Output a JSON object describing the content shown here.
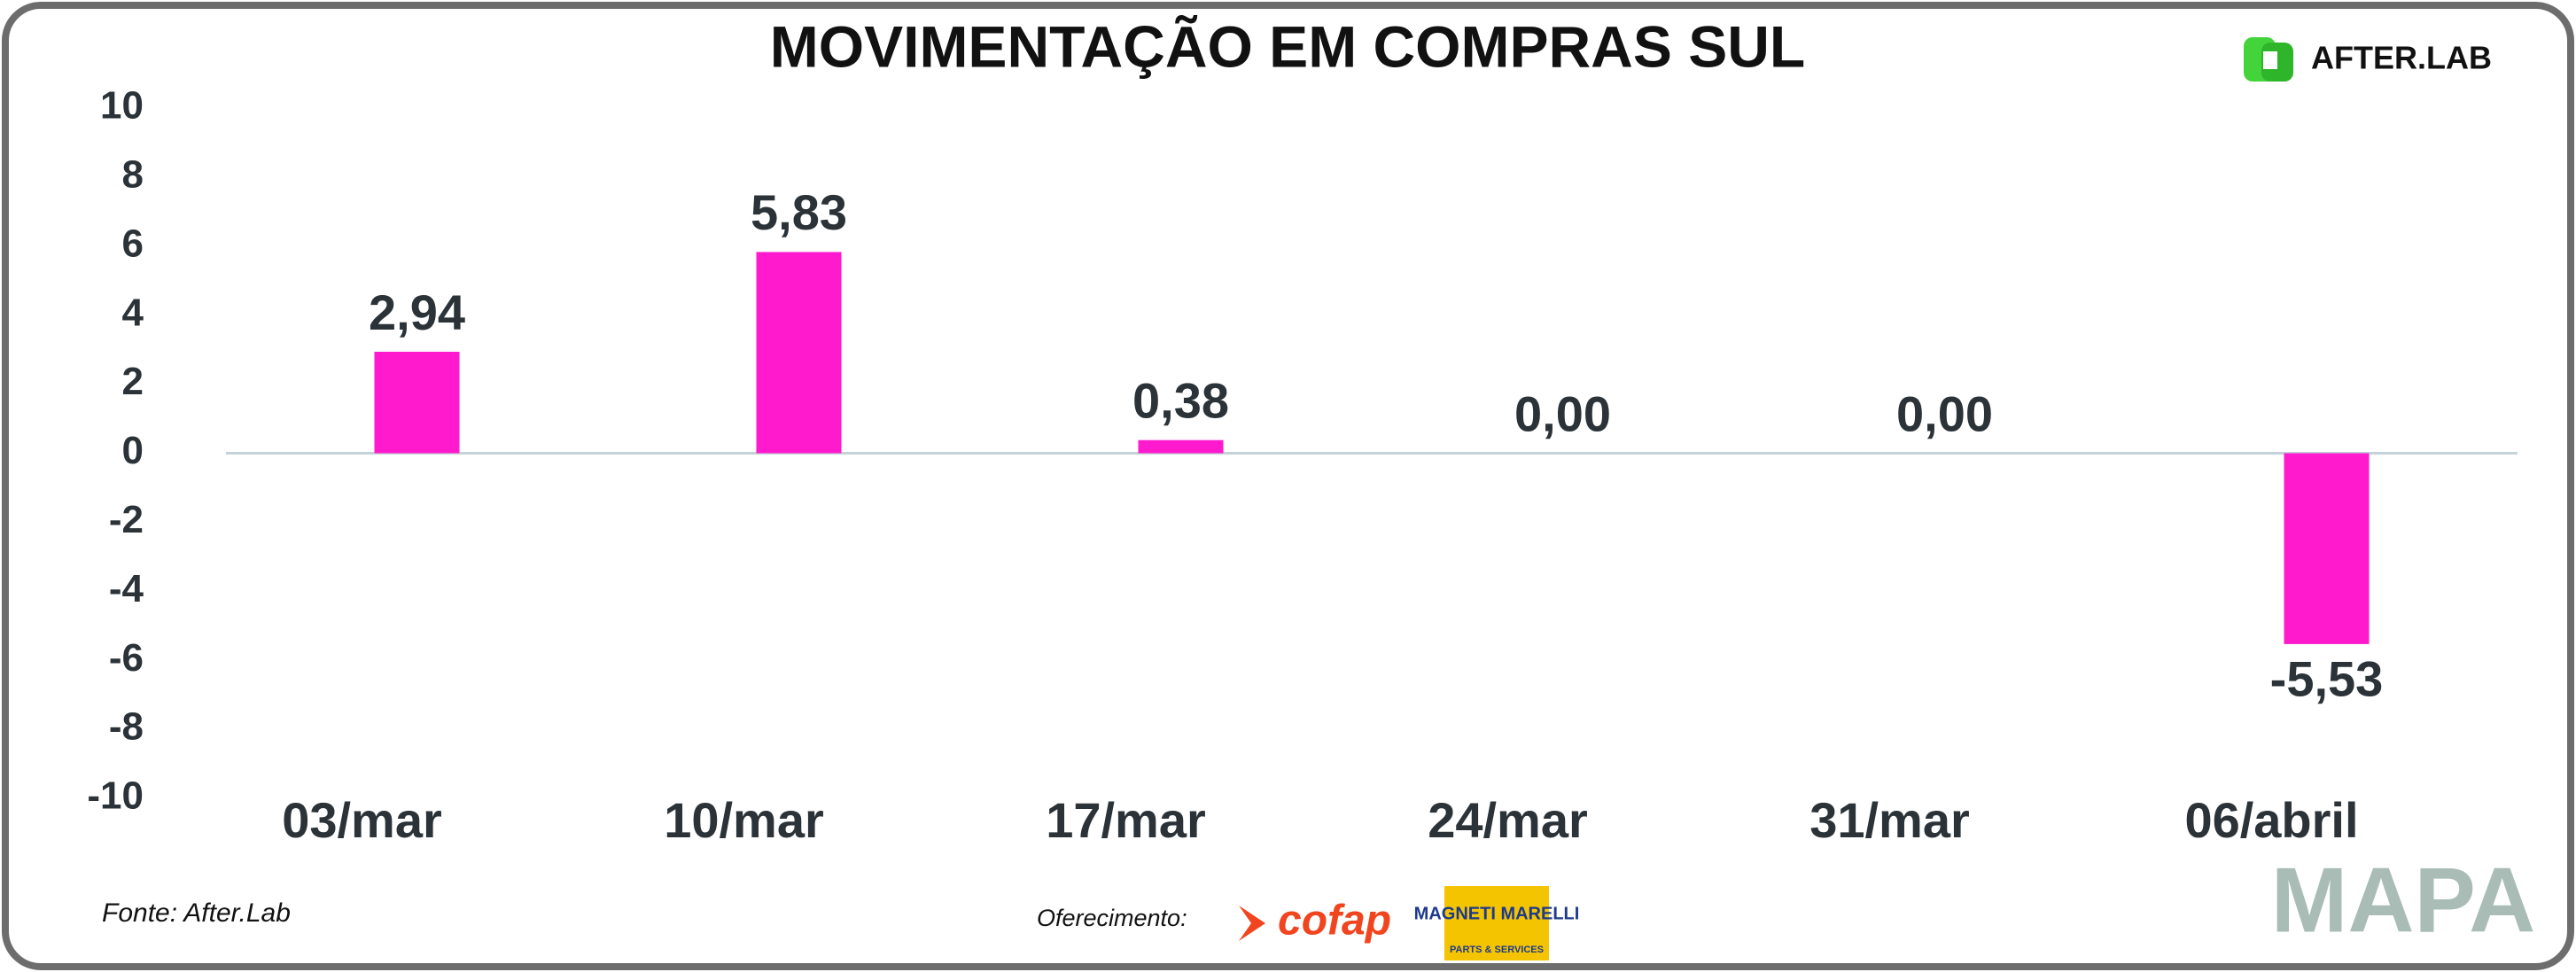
{
  "chart_data": {
    "type": "bar",
    "title": "MOVIMENTAÇÃO EM COMPRAS SUL",
    "categories": [
      "03/mar",
      "10/mar",
      "17/mar",
      "24/mar",
      "31/mar",
      "06/abril"
    ],
    "values": [
      2.94,
      5.83,
      0.38,
      0,
      0,
      -5.53
    ],
    "value_labels": [
      "2,94",
      "5,83",
      "0,38",
      "0,00",
      "0,00",
      "-5,53"
    ],
    "color": "#ff1acd",
    "ylim": [
      -10,
      10
    ],
    "yticks": [
      10,
      8,
      6,
      4,
      2,
      0,
      -2,
      -4,
      -6,
      -8,
      -10
    ],
    "grid": false
  },
  "footer": {
    "source": "Fonte: After.Lab",
    "sponsor_label": "Oferecimento:"
  },
  "logos": {
    "afterlab": "AFTER.LAB",
    "cofap": "cofap",
    "magneti_marelli": "MAGNETI MARELLI",
    "parts_services": "PARTS & SERVICES",
    "mapa": "MAPA"
  }
}
